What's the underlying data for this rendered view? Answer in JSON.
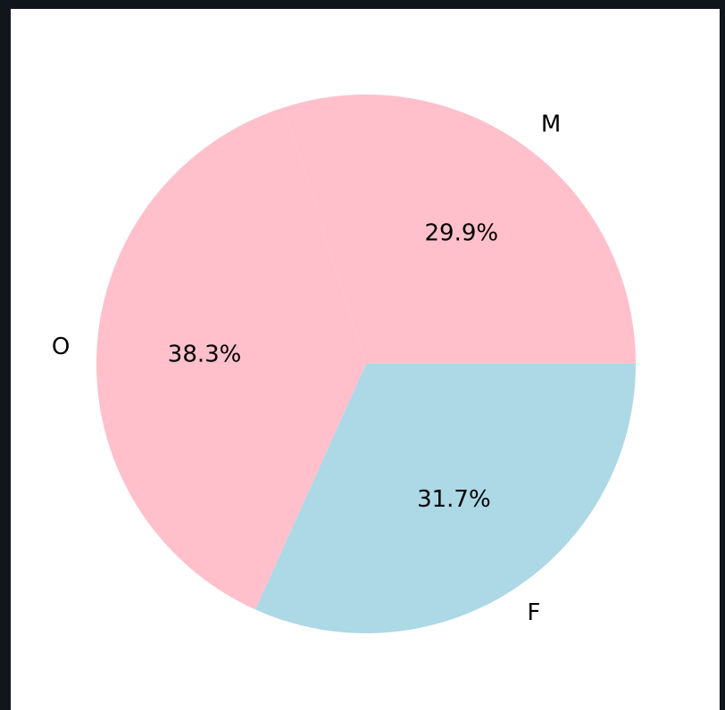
{
  "chart_data": {
    "type": "pie",
    "title": "",
    "slices": [
      {
        "label": "M",
        "value": 29.9,
        "pct_label": "29.9%",
        "color": "#ffc0cb"
      },
      {
        "label": "O",
        "value": 38.3,
        "pct_label": "38.3%",
        "color": "#ffc0cb"
      },
      {
        "label": "F",
        "value": 31.7,
        "pct_label": "31.7%",
        "color": "#add8e6"
      }
    ],
    "start_angle_deg": 0,
    "direction": "counterclockwise",
    "legend": "none"
  }
}
